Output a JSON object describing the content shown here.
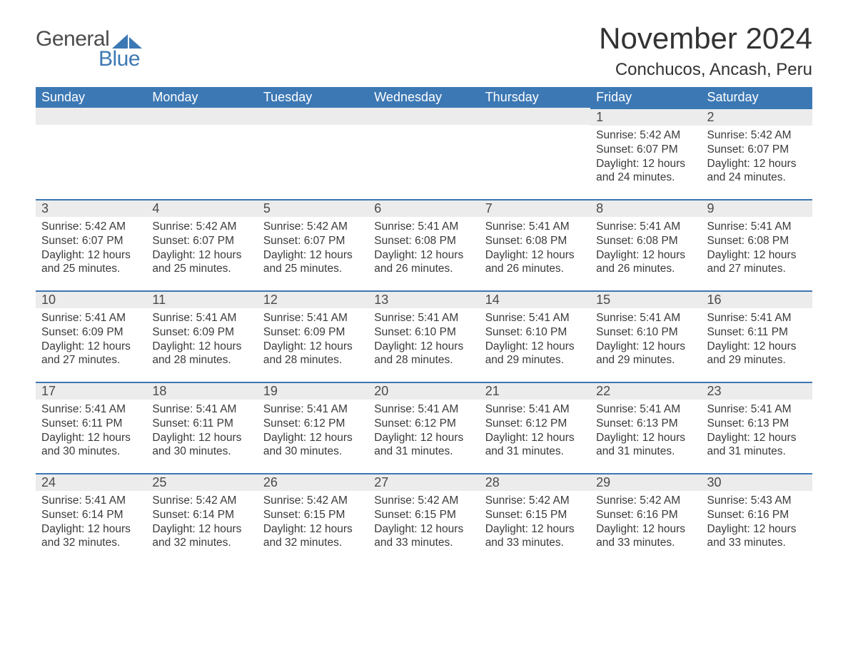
{
  "brand": {
    "part1": "General",
    "part2": "Blue",
    "accent_color": "#3c78b4"
  },
  "title": "November 2024",
  "location": "Conchucos, Ancash, Peru",
  "colors": {
    "header_bg": "#3c78b4",
    "header_text": "#ffffff",
    "row_stripe": "#ececec",
    "row_border": "#3c78b4",
    "body_text": "#3a3a3a",
    "background": "#ffffff"
  },
  "columns": [
    "Sunday",
    "Monday",
    "Tuesday",
    "Wednesday",
    "Thursday",
    "Friday",
    "Saturday"
  ],
  "weeks": [
    [
      {
        "empty": true
      },
      {
        "empty": true
      },
      {
        "empty": true
      },
      {
        "empty": true
      },
      {
        "empty": true
      },
      {
        "day": "1",
        "sunrise": "Sunrise: 5:42 AM",
        "sunset": "Sunset: 6:07 PM",
        "daylight": "Daylight: 12 hours and 24 minutes."
      },
      {
        "day": "2",
        "sunrise": "Sunrise: 5:42 AM",
        "sunset": "Sunset: 6:07 PM",
        "daylight": "Daylight: 12 hours and 24 minutes."
      }
    ],
    [
      {
        "day": "3",
        "sunrise": "Sunrise: 5:42 AM",
        "sunset": "Sunset: 6:07 PM",
        "daylight": "Daylight: 12 hours and 25 minutes."
      },
      {
        "day": "4",
        "sunrise": "Sunrise: 5:42 AM",
        "sunset": "Sunset: 6:07 PM",
        "daylight": "Daylight: 12 hours and 25 minutes."
      },
      {
        "day": "5",
        "sunrise": "Sunrise: 5:42 AM",
        "sunset": "Sunset: 6:07 PM",
        "daylight": "Daylight: 12 hours and 25 minutes."
      },
      {
        "day": "6",
        "sunrise": "Sunrise: 5:41 AM",
        "sunset": "Sunset: 6:08 PM",
        "daylight": "Daylight: 12 hours and 26 minutes."
      },
      {
        "day": "7",
        "sunrise": "Sunrise: 5:41 AM",
        "sunset": "Sunset: 6:08 PM",
        "daylight": "Daylight: 12 hours and 26 minutes."
      },
      {
        "day": "8",
        "sunrise": "Sunrise: 5:41 AM",
        "sunset": "Sunset: 6:08 PM",
        "daylight": "Daylight: 12 hours and 26 minutes."
      },
      {
        "day": "9",
        "sunrise": "Sunrise: 5:41 AM",
        "sunset": "Sunset: 6:08 PM",
        "daylight": "Daylight: 12 hours and 27 minutes."
      }
    ],
    [
      {
        "day": "10",
        "sunrise": "Sunrise: 5:41 AM",
        "sunset": "Sunset: 6:09 PM",
        "daylight": "Daylight: 12 hours and 27 minutes."
      },
      {
        "day": "11",
        "sunrise": "Sunrise: 5:41 AM",
        "sunset": "Sunset: 6:09 PM",
        "daylight": "Daylight: 12 hours and 28 minutes."
      },
      {
        "day": "12",
        "sunrise": "Sunrise: 5:41 AM",
        "sunset": "Sunset: 6:09 PM",
        "daylight": "Daylight: 12 hours and 28 minutes."
      },
      {
        "day": "13",
        "sunrise": "Sunrise: 5:41 AM",
        "sunset": "Sunset: 6:10 PM",
        "daylight": "Daylight: 12 hours and 28 minutes."
      },
      {
        "day": "14",
        "sunrise": "Sunrise: 5:41 AM",
        "sunset": "Sunset: 6:10 PM",
        "daylight": "Daylight: 12 hours and 29 minutes."
      },
      {
        "day": "15",
        "sunrise": "Sunrise: 5:41 AM",
        "sunset": "Sunset: 6:10 PM",
        "daylight": "Daylight: 12 hours and 29 minutes."
      },
      {
        "day": "16",
        "sunrise": "Sunrise: 5:41 AM",
        "sunset": "Sunset: 6:11 PM",
        "daylight": "Daylight: 12 hours and 29 minutes."
      }
    ],
    [
      {
        "day": "17",
        "sunrise": "Sunrise: 5:41 AM",
        "sunset": "Sunset: 6:11 PM",
        "daylight": "Daylight: 12 hours and 30 minutes."
      },
      {
        "day": "18",
        "sunrise": "Sunrise: 5:41 AM",
        "sunset": "Sunset: 6:11 PM",
        "daylight": "Daylight: 12 hours and 30 minutes."
      },
      {
        "day": "19",
        "sunrise": "Sunrise: 5:41 AM",
        "sunset": "Sunset: 6:12 PM",
        "daylight": "Daylight: 12 hours and 30 minutes."
      },
      {
        "day": "20",
        "sunrise": "Sunrise: 5:41 AM",
        "sunset": "Sunset: 6:12 PM",
        "daylight": "Daylight: 12 hours and 31 minutes."
      },
      {
        "day": "21",
        "sunrise": "Sunrise: 5:41 AM",
        "sunset": "Sunset: 6:12 PM",
        "daylight": "Daylight: 12 hours and 31 minutes."
      },
      {
        "day": "22",
        "sunrise": "Sunrise: 5:41 AM",
        "sunset": "Sunset: 6:13 PM",
        "daylight": "Daylight: 12 hours and 31 minutes."
      },
      {
        "day": "23",
        "sunrise": "Sunrise: 5:41 AM",
        "sunset": "Sunset: 6:13 PM",
        "daylight": "Daylight: 12 hours and 31 minutes."
      }
    ],
    [
      {
        "day": "24",
        "sunrise": "Sunrise: 5:41 AM",
        "sunset": "Sunset: 6:14 PM",
        "daylight": "Daylight: 12 hours and 32 minutes."
      },
      {
        "day": "25",
        "sunrise": "Sunrise: 5:42 AM",
        "sunset": "Sunset: 6:14 PM",
        "daylight": "Daylight: 12 hours and 32 minutes."
      },
      {
        "day": "26",
        "sunrise": "Sunrise: 5:42 AM",
        "sunset": "Sunset: 6:15 PM",
        "daylight": "Daylight: 12 hours and 32 minutes."
      },
      {
        "day": "27",
        "sunrise": "Sunrise: 5:42 AM",
        "sunset": "Sunset: 6:15 PM",
        "daylight": "Daylight: 12 hours and 33 minutes."
      },
      {
        "day": "28",
        "sunrise": "Sunrise: 5:42 AM",
        "sunset": "Sunset: 6:15 PM",
        "daylight": "Daylight: 12 hours and 33 minutes."
      },
      {
        "day": "29",
        "sunrise": "Sunrise: 5:42 AM",
        "sunset": "Sunset: 6:16 PM",
        "daylight": "Daylight: 12 hours and 33 minutes."
      },
      {
        "day": "30",
        "sunrise": "Sunrise: 5:43 AM",
        "sunset": "Sunset: 6:16 PM",
        "daylight": "Daylight: 12 hours and 33 minutes."
      }
    ]
  ]
}
